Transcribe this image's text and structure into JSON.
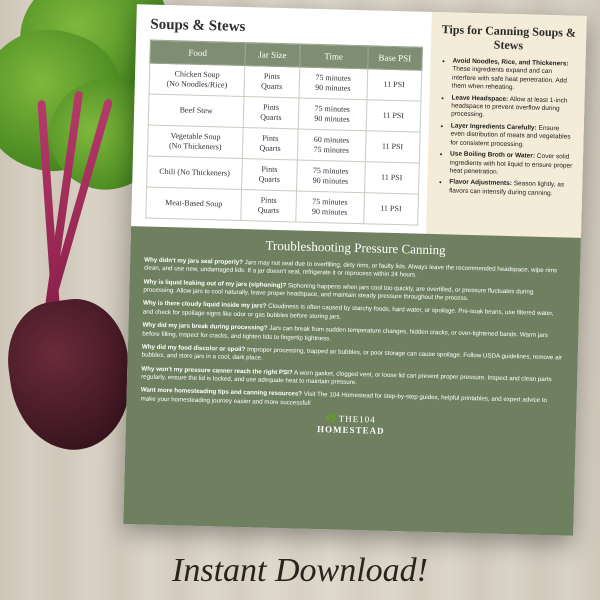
{
  "caption": "Instant Download!",
  "doc": {
    "table_title": "Soups & Stews",
    "columns": [
      "Food",
      "Jar Size",
      "Time",
      "Base PSI"
    ],
    "col_widths": [
      "35%",
      "20%",
      "25%",
      "20%"
    ],
    "rows": [
      {
        "food": "Chicken Soup\n(No Noodles/Rice)",
        "jar": "Pints\nQuarts",
        "time": "75 minutes\n90 minutes",
        "psi": "11 PSI"
      },
      {
        "food": "Beef Stew",
        "jar": "Pints\nQuarts",
        "time": "75 minutes\n90 minutes",
        "psi": "11 PSI"
      },
      {
        "food": "Vegetable Soup\n(No Thickeners)",
        "jar": "Pints\nQuarts",
        "time": "60 minutes\n75 minutes",
        "psi": "11 PSI"
      },
      {
        "food": "Chili (No Thickeners)",
        "jar": "Pints\nQuarts",
        "time": "75 minutes\n90 minutes",
        "psi": "11 PSI"
      },
      {
        "food": "Meat-Based Soup",
        "jar": "Pints\nQuarts",
        "time": "75 minutes\n90 minutes",
        "psi": "11 PSI"
      }
    ],
    "header_bg": "#7f8e72",
    "header_fg": "#ffffff",
    "cell_border": "#c7cdbf",
    "font_size_pt": 8
  },
  "tips": {
    "title": "Tips for Canning Soups & Stews",
    "bg": "#f4ecd8",
    "items": [
      {
        "b": "Avoid Noodles, Rice, and Thickeners:",
        "t": " These ingredients expand and can interfere with safe heat penetration. Add them when reheating."
      },
      {
        "b": "Leave Headspace:",
        "t": " Allow at least 1-inch headspace to prevent overflow during processing."
      },
      {
        "b": "Layer Ingredients Carefully:",
        "t": " Ensure even distribution of meats and vegetables for consistent processing."
      },
      {
        "b": "Use Boiling Broth or Water:",
        "t": " Cover solid ingredients with hot liquid to ensure proper heat penetration."
      },
      {
        "b": "Flavor Adjustments:",
        "t": " Season lightly, as flavors can intensify during canning."
      }
    ]
  },
  "trouble": {
    "title": "Troubleshooting Pressure Canning",
    "bg": "#6f8060",
    "fg": "#ffffff",
    "qas": [
      {
        "q": "Why didn't my jars seal properly?",
        "a": " Jars may not seal due to overfilling, dirty rims, or faulty lids. Always leave the recommended headspace, wipe rims clean, and use new, undamaged lids. If a jar doesn't seal, refrigerate it or reprocess within 24 hours."
      },
      {
        "q": "Why is liquid leaking out of my jars (siphoning)?",
        "a": " Siphoning happens when jars cool too quickly, are overfilled, or pressure fluctuates during processing. Allow jars to cool naturally, leave proper headspace, and maintain steady pressure throughout the process."
      },
      {
        "q": "Why is there cloudy liquid inside my jars?",
        "a": " Cloudiness is often caused by starchy foods, hard water, or spoilage. Pre-soak beans, use filtered water, and check for spoilage signs like odor or gas bubbles before storing jars."
      },
      {
        "q": "Why did my jars break during processing?",
        "a": " Jars can break from sudden temperature changes, hidden cracks, or over-tightened bands. Warm jars before filling, inspect for cracks, and tighten lids to fingertip tightness."
      },
      {
        "q": "Why did my food discolor or spoil?",
        "a": " Improper processing, trapped air bubbles, or poor storage can cause spoilage. Follow USDA guidelines, remove air bubbles, and store jars in a cool, dark place."
      },
      {
        "q": "Why won't my pressure canner reach the right PSI?",
        "a": " A worn gasket, clogged vent, or loose lid can prevent proper pressure. Inspect and clean parts regularly, ensure the lid is locked, and use adequate heat to maintain pressure."
      },
      {
        "q": "Want more homesteading tips and canning resources?",
        "a": " Visit The 104 Homestead for step-by-step guides, helpful printables, and expert advice to make your homesteading journey easier and more successful!"
      }
    ]
  },
  "brand": {
    "prefix": "THE104",
    "name": "HOMESTEAD"
  }
}
